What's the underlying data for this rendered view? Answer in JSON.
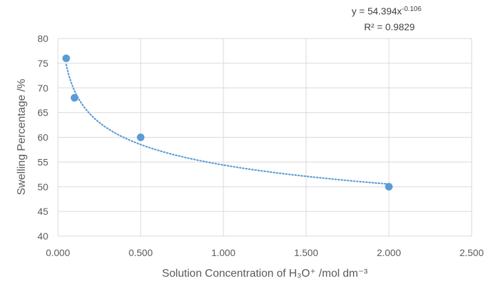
{
  "chart_data": {
    "type": "scatter",
    "title": "",
    "xlabel": "Solution Concentration of H₃O⁺ /mol dm⁻³",
    "ylabel": "Swelling Percentage /%",
    "xlim": [
      0,
      2.5
    ],
    "ylim": [
      40,
      80
    ],
    "x_ticks": [
      "0.000",
      "0.500",
      "1.000",
      "1.500",
      "2.000",
      "2.500"
    ],
    "y_ticks": [
      "40",
      "45",
      "50",
      "55",
      "60",
      "65",
      "70",
      "75",
      "80"
    ],
    "grid": {
      "vertical": true,
      "horizontal": true
    },
    "legend": "none",
    "points": [
      {
        "x": 0.05,
        "y": 76
      },
      {
        "x": 0.1,
        "y": 68
      },
      {
        "x": 0.5,
        "y": 60
      },
      {
        "x": 2.0,
        "y": 50
      }
    ],
    "trendline": {
      "type": "power",
      "coefficient": 54.394,
      "exponent": -0.106,
      "equation_prefix": "y = 54.394x",
      "equation_exponent": "-0.106",
      "r_squared": "R² = 0.9829"
    },
    "colors": {
      "marker": "#5B9BD5",
      "grid": "#D9D9D9",
      "text": "#595959"
    }
  }
}
